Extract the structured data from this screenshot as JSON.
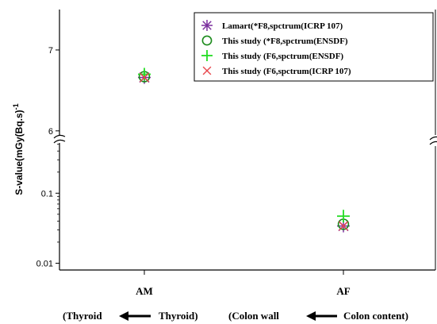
{
  "chart_data": {
    "type": "scatter",
    "ylabel": "S-value(mGy(Bq.s)",
    "ylabel_superscript": "-1",
    "yaxis_scale": "broken: log lower segment, linear upper segment",
    "upper_segment": {
      "ylim": [
        5.9,
        7.5
      ],
      "ticks": [
        6,
        7
      ],
      "tick_labels": [
        "6",
        "7"
      ]
    },
    "lower_segment": {
      "scale": "log",
      "ylim": [
        0.008,
        0.55
      ],
      "ticks": [
        0.01,
        0.1
      ],
      "tick_labels": [
        "0.01",
        "0.1"
      ]
    },
    "categories": [
      "AM",
      "AF"
    ],
    "annotations": [
      {
        "part1": "(Thyroid",
        "part2": "Thyroid)"
      },
      {
        "part1": "(Colon wall",
        "part2": "Colon content)"
      }
    ],
    "legend_position": "top-right",
    "series": [
      {
        "name": "Lamart(*F8,spctrum(ICRP 107)",
        "marker": "asterisk",
        "color": "#7b2f9e",
        "values": [
          6.66,
          0.034
        ]
      },
      {
        "name": "This study (*F8,spctrum(ENSDF)",
        "marker": "circle",
        "color": "#1a8a1a",
        "values": [
          6.67,
          0.036
        ]
      },
      {
        "name": "This study (F6,spctrum(ENSDF)",
        "marker": "plus",
        "color": "#22dd22",
        "values": [
          6.7,
          0.047
        ]
      },
      {
        "name": "This study (F6,spctrum(ICRP 107)",
        "marker": "x",
        "color": "#e8474c",
        "values": [
          6.66,
          0.034
        ]
      }
    ]
  }
}
